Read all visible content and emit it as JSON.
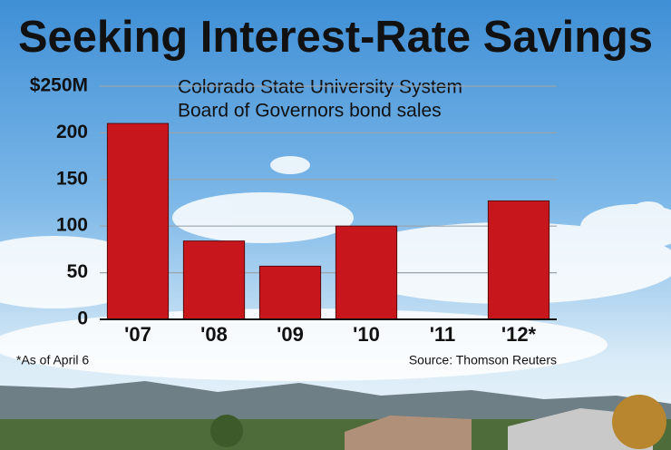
{
  "chart_data": {
    "type": "bar",
    "title": "Seeking Interest-Rate Savings",
    "subtitle": [
      "Colorado State University System",
      "Board of Governors bond sales"
    ],
    "categories": [
      "'07",
      "'08",
      "'09",
      "'10",
      "'11",
      "'12*"
    ],
    "values": [
      210,
      84,
      57,
      100,
      0,
      127
    ],
    "color": "#c8161d",
    "ylim": [
      0,
      250
    ],
    "yticks": [
      0,
      50,
      100,
      150,
      200,
      {
        "value": 250,
        "label": "$250M"
      }
    ],
    "grid": true,
    "notes": [
      "*As of April 6",
      "Source: Thomson Reuters"
    ]
  }
}
